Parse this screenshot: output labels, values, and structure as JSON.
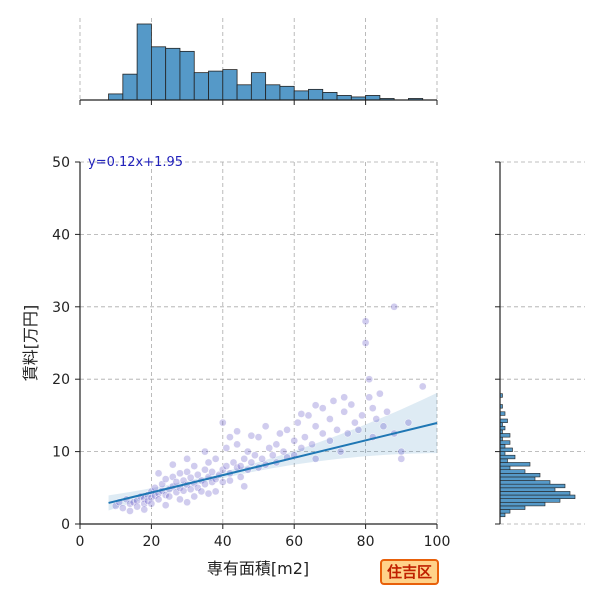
{
  "chart_data": {
    "type": "scatter",
    "xlabel": "専有面積[m2]",
    "ylabel": "賃料[万円]",
    "xlim": [
      0,
      100
    ],
    "ylim": [
      0,
      50
    ],
    "x_ticks": [
      "0",
      "20",
      "40",
      "60",
      "80",
      "100"
    ],
    "y_ticks": [
      "0",
      "10",
      "20",
      "30",
      "40",
      "50"
    ],
    "grid": true,
    "annotation": "y=0.12x+1.95",
    "badge": "住吉区",
    "regression": {
      "slope": 0.12,
      "intercept": 1.95,
      "x_range": [
        8,
        100
      ]
    },
    "colors": {
      "scatter": "#4433bb",
      "line": "#1f77b4",
      "hist": "#5599c8"
    },
    "points": [
      [
        10,
        2.5
      ],
      [
        11,
        3.0
      ],
      [
        12,
        2.2
      ],
      [
        13,
        3.4
      ],
      [
        14,
        2.8
      ],
      [
        15,
        3.0
      ],
      [
        16,
        3.2
      ],
      [
        16,
        2.4
      ],
      [
        17,
        3.8
      ],
      [
        18,
        3.5
      ],
      [
        18,
        2.8
      ],
      [
        19,
        4.0
      ],
      [
        19,
        3.2
      ],
      [
        20,
        3.6
      ],
      [
        20,
        4.5
      ],
      [
        21,
        3.9
      ],
      [
        21,
        5.0
      ],
      [
        22,
        4.2
      ],
      [
        22,
        3.4
      ],
      [
        23,
        4.6
      ],
      [
        23,
        5.5
      ],
      [
        24,
        4.0
      ],
      [
        24,
        6.2
      ],
      [
        25,
        4.8
      ],
      [
        25,
        3.8
      ],
      [
        26,
        5.2
      ],
      [
        26,
        6.5
      ],
      [
        27,
        4.4
      ],
      [
        27,
        5.8
      ],
      [
        28,
        5.0
      ],
      [
        28,
        7.0
      ],
      [
        29,
        4.6
      ],
      [
        29,
        6.0
      ],
      [
        30,
        5.4
      ],
      [
        30,
        7.2
      ],
      [
        31,
        4.8
      ],
      [
        31,
        6.4
      ],
      [
        32,
        5.6
      ],
      [
        32,
        8.0
      ],
      [
        33,
        5.0
      ],
      [
        33,
        6.8
      ],
      [
        34,
        6.0
      ],
      [
        34,
        4.5
      ],
      [
        35,
        7.5
      ],
      [
        35,
        5.5
      ],
      [
        36,
        6.5
      ],
      [
        36,
        8.5
      ],
      [
        37,
        5.8
      ],
      [
        37,
        7.2
      ],
      [
        38,
        6.2
      ],
      [
        38,
        9.0
      ],
      [
        39,
        6.8
      ],
      [
        40,
        7.5
      ],
      [
        40,
        5.8
      ],
      [
        41,
        8.0
      ],
      [
        41,
        10.5
      ],
      [
        42,
        7.0
      ],
      [
        42,
        6.0
      ],
      [
        43,
        8.5
      ],
      [
        44,
        7.8
      ],
      [
        44,
        11.0
      ],
      [
        45,
        8.0
      ],
      [
        45,
        6.5
      ],
      [
        46,
        9.0
      ],
      [
        47,
        7.5
      ],
      [
        47,
        10.0
      ],
      [
        48,
        8.5
      ],
      [
        49,
        9.5
      ],
      [
        50,
        7.8
      ],
      [
        50,
        12.0
      ],
      [
        51,
        9.0
      ],
      [
        52,
        8.2
      ],
      [
        53,
        10.5
      ],
      [
        54,
        9.5
      ],
      [
        55,
        11.0
      ],
      [
        55,
        8.5
      ],
      [
        56,
        12.5
      ],
      [
        57,
        10.0
      ],
      [
        58,
        9.2
      ],
      [
        58,
        13.0
      ],
      [
        60,
        11.5
      ],
      [
        60,
        9.5
      ],
      [
        61,
        14.0
      ],
      [
        62,
        10.5
      ],
      [
        63,
        12.0
      ],
      [
        64,
        15.0
      ],
      [
        65,
        11.0
      ],
      [
        66,
        9.0
      ],
      [
        66,
        13.5
      ],
      [
        68,
        12.5
      ],
      [
        68,
        16.0
      ],
      [
        70,
        11.5
      ],
      [
        70,
        14.5
      ],
      [
        71,
        17.0
      ],
      [
        72,
        13.0
      ],
      [
        73,
        10.0
      ],
      [
        74,
        15.5
      ],
      [
        75,
        12.5
      ],
      [
        76,
        16.5
      ],
      [
        77,
        14.0
      ],
      [
        78,
        13.0
      ],
      [
        79,
        15.0
      ],
      [
        80,
        28.0
      ],
      [
        80,
        25.0
      ],
      [
        81,
        20.0
      ],
      [
        81,
        17.5
      ],
      [
        82,
        16.0
      ],
      [
        82,
        12.0
      ],
      [
        83,
        14.5
      ],
      [
        84,
        18.0
      ],
      [
        85,
        13.5
      ],
      [
        86,
        15.5
      ],
      [
        88,
        30.0
      ],
      [
        88,
        12.5
      ],
      [
        90,
        10.0
      ],
      [
        90,
        9.0
      ],
      [
        92,
        14.0
      ],
      [
        96,
        19.0
      ],
      [
        40,
        14.0
      ],
      [
        42,
        12.0
      ],
      [
        35,
        10.0
      ],
      [
        30,
        9.0
      ],
      [
        26,
        8.2
      ],
      [
        22,
        7.0
      ],
      [
        44,
        12.8
      ],
      [
        48,
        12.2
      ],
      [
        52,
        13.5
      ],
      [
        62,
        15.2
      ],
      [
        66,
        16.4
      ],
      [
        74,
        17.5
      ],
      [
        24,
        2.6
      ],
      [
        28,
        3.4
      ],
      [
        32,
        3.8
      ],
      [
        36,
        4.2
      ],
      [
        20,
        2.8
      ],
      [
        18,
        2.0
      ],
      [
        14,
        1.8
      ],
      [
        30,
        3.0
      ],
      [
        38,
        4.5
      ],
      [
        46,
        5.2
      ]
    ],
    "hist_x": {
      "bin_edges": [
        0,
        4,
        8,
        12,
        16,
        20,
        24,
        28,
        32,
        36,
        40,
        44,
        48,
        52,
        56,
        60,
        64,
        68,
        72,
        76,
        80,
        84,
        88,
        92,
        96,
        100
      ],
      "counts": [
        0,
        0,
        4,
        17,
        50,
        35,
        34,
        32,
        18,
        19,
        20,
        10,
        18,
        10,
        9,
        6,
        7,
        5,
        3,
        2,
        3,
        1,
        0,
        1,
        0
      ]
    },
    "hist_y": {
      "bin_edges": [
        0,
        0.5,
        1,
        1.5,
        2,
        2.5,
        3,
        3.5,
        4,
        4.5,
        5,
        5.5,
        6,
        6.5,
        7,
        7.5,
        8,
        8.5,
        9,
        9.5,
        10,
        10.5,
        11,
        11.5,
        12,
        12.5,
        13,
        13.5,
        14,
        14.5,
        15,
        15.5,
        16,
        16.5,
        17,
        17.5,
        18,
        18.5,
        19,
        19.5,
        20
      ],
      "counts": [
        0,
        0,
        2,
        4,
        10,
        18,
        24,
        30,
        28,
        22,
        26,
        20,
        14,
        16,
        10,
        4,
        12,
        3,
        6,
        2,
        5,
        2,
        4,
        1,
        4,
        1,
        2,
        1,
        3,
        0,
        2,
        0,
        1,
        0,
        0,
        1,
        0,
        0,
        0,
        0
      ]
    }
  }
}
